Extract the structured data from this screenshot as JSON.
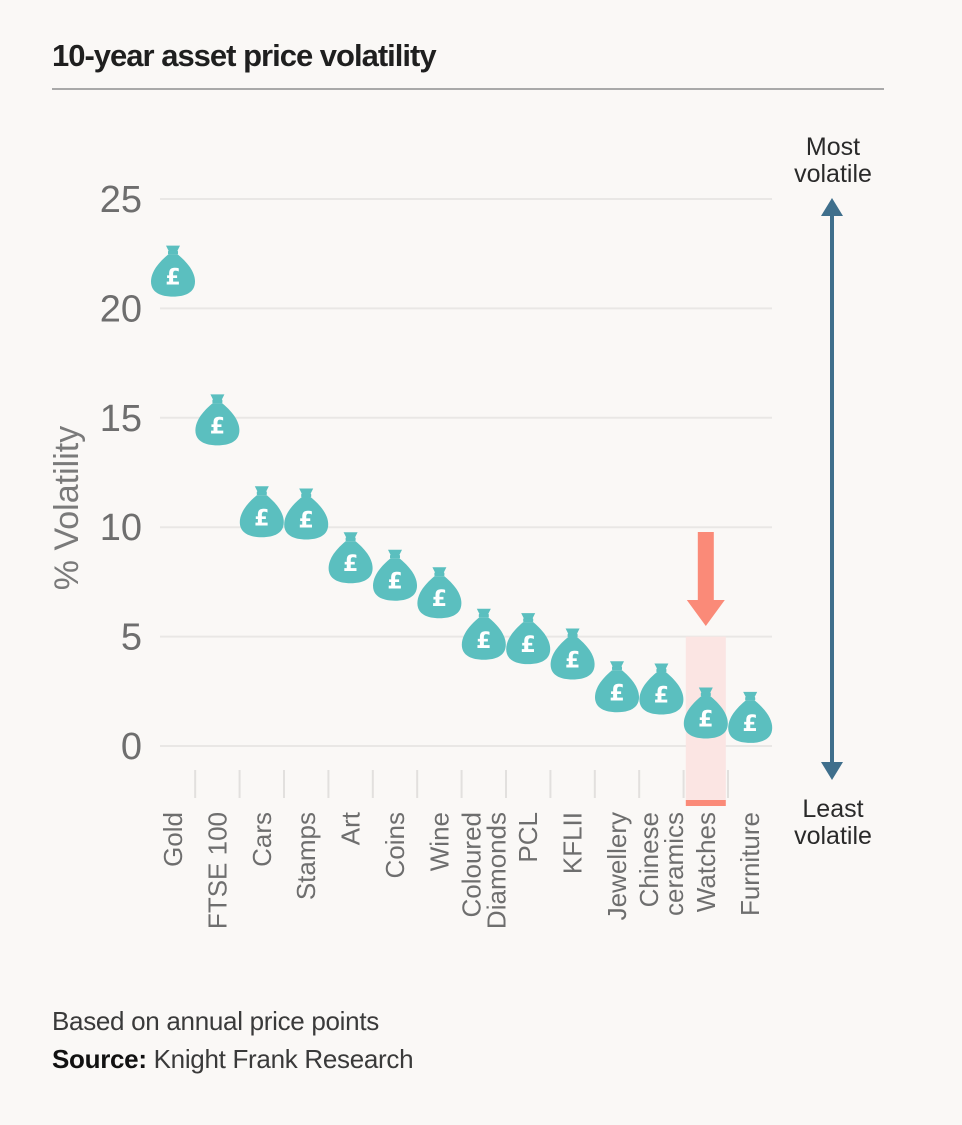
{
  "chart_data": {
    "type": "scatter",
    "title": "10-year asset price volatility",
    "ylabel": "% Volatility",
    "ylim": [
      0,
      25
    ],
    "yticks": [
      "0",
      "5",
      "10",
      "15",
      "20",
      "25"
    ],
    "grid": true,
    "categories": [
      "Gold",
      "FTSE 100",
      "Cars",
      "Stamps",
      "Art",
      "Coins",
      "Wine",
      "Coloured\nDiamonds",
      "PCL",
      "KFLII",
      "Jewellery",
      "Chinese\nceramics",
      "Watches",
      "Furniture"
    ],
    "values": [
      21.5,
      14.7,
      10.5,
      10.4,
      8.4,
      7.6,
      6.8,
      4.9,
      4.7,
      4.0,
      2.5,
      2.4,
      1.3,
      1.1
    ],
    "highlight": "Watches",
    "annotations": {
      "top": "Most\nvolatile",
      "bottom": "Least\nvolatile"
    },
    "marker_symbol": "£",
    "colors": {
      "marker": "#5bbfbf",
      "marker_symbol": "#ffffff",
      "arrow": "#3f6f8c",
      "highlight_arrow": "#fa8a78",
      "highlight_band": "#fbe5e3",
      "grid": "#e9e7e5",
      "tick_text": "#6e6e6e"
    }
  },
  "footer": {
    "note": "Based on annual price points",
    "source_label": "Source:",
    "source_text": " Knight Frank Research"
  }
}
